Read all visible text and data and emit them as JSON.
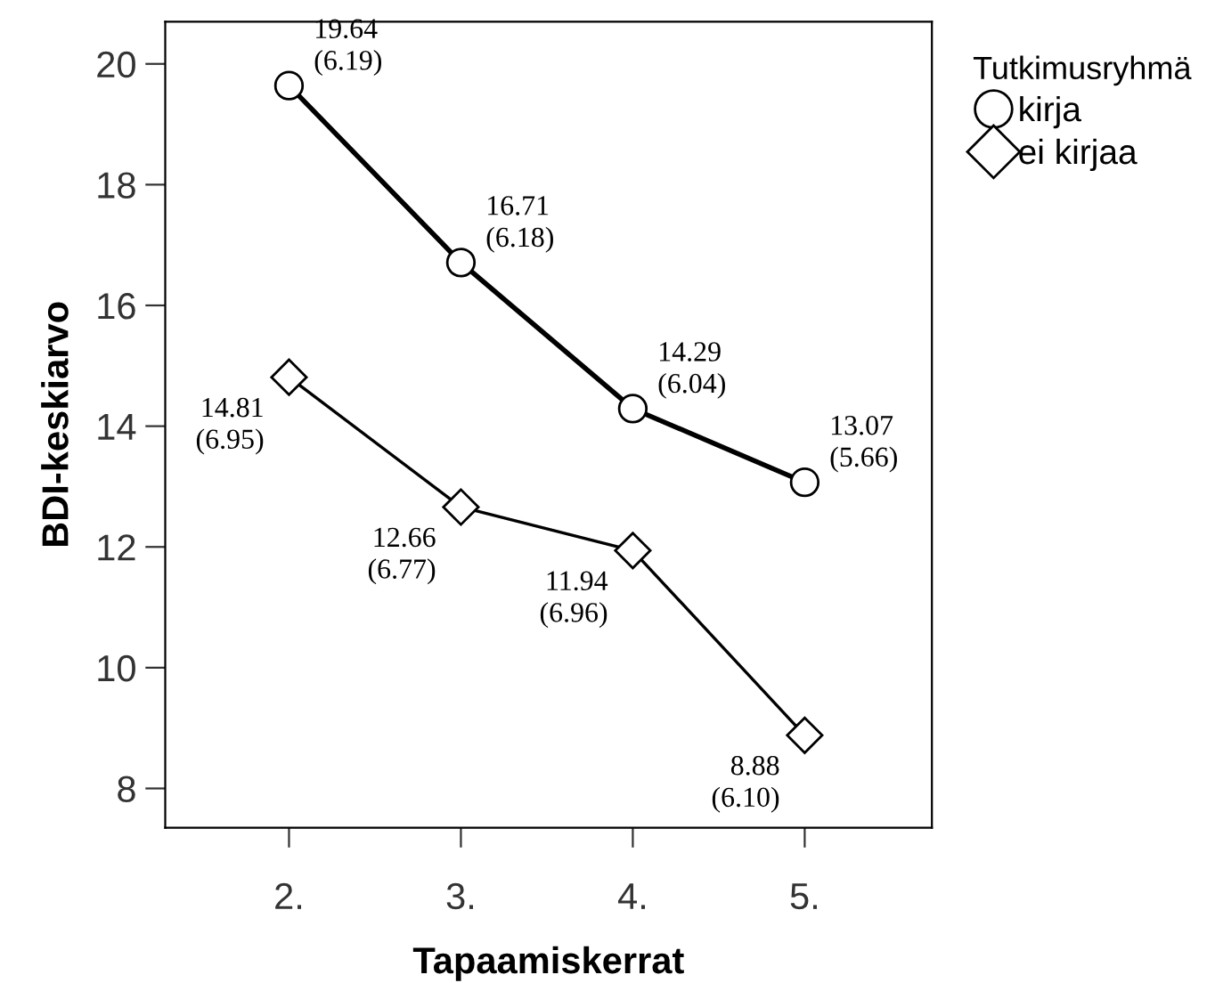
{
  "chart_data": {
    "type": "line",
    "xlabel": "Tapaamiskerrat",
    "ylabel": "BDI-keskiarvo",
    "legend_title": "Tutkimusryhmä",
    "legend": "top right",
    "categories": [
      "2.",
      "3.",
      "4.",
      "5."
    ],
    "ylim": [
      7.35,
      20.7
    ],
    "yticks": [
      8,
      10,
      12,
      14,
      16,
      18,
      20
    ],
    "grid": false,
    "series": [
      {
        "name": "kirja",
        "color": "#000000",
        "marker": "circle",
        "values": [
          19.64,
          16.71,
          14.29,
          13.07
        ],
        "value_labels": [
          "19.64\n(6.19)",
          "16.71\n(6.18)",
          "14.29\n(6.04)",
          "13.07\n(5.66)"
        ]
      },
      {
        "name": "ei kirjaa",
        "color": "#000000",
        "marker": "diamond",
        "values": [
          14.81,
          12.66,
          11.94,
          8.88
        ],
        "value_labels": [
          "14.81\n(6.95)",
          "12.66\n(6.77)",
          "11.94\n(6.96)",
          "8.88\n(6.10)"
        ]
      }
    ]
  }
}
